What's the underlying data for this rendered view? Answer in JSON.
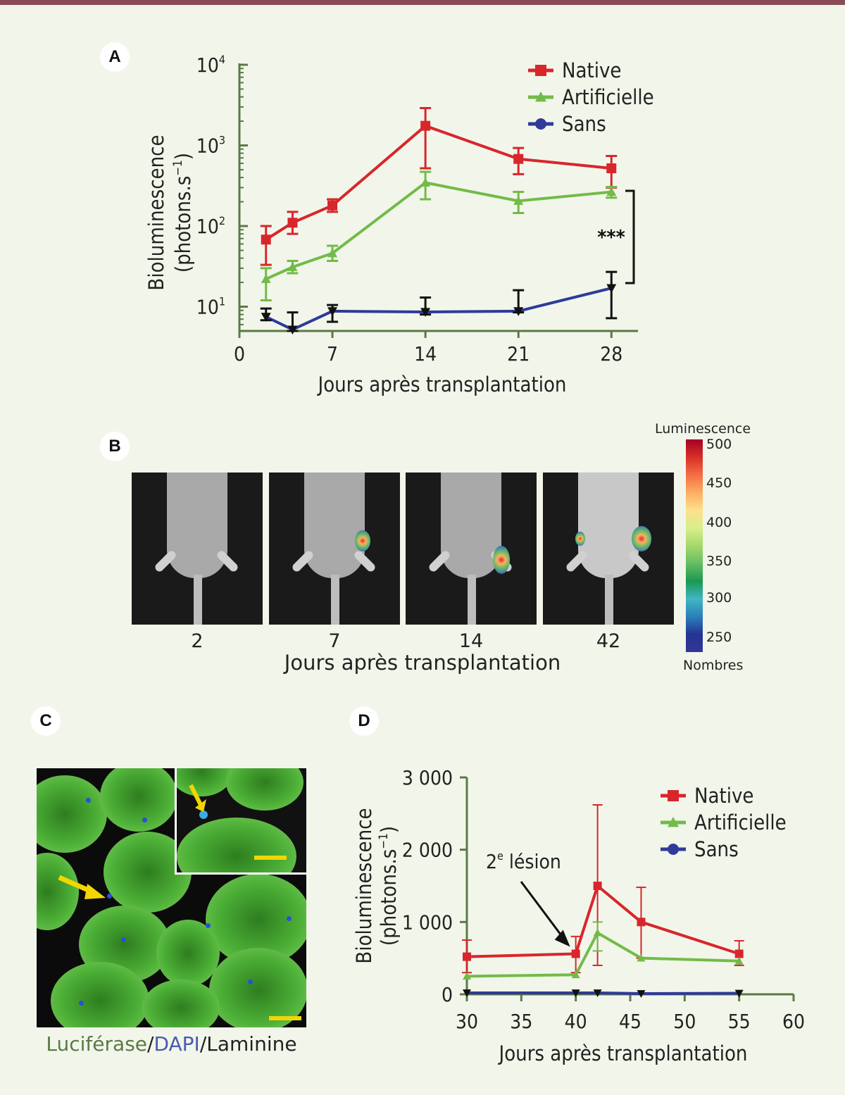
{
  "panels": {
    "a": "A",
    "b": "B",
    "c": "C",
    "d": "D"
  },
  "legend": {
    "native": "Native",
    "artificielle": "Artificielle",
    "sans": "Sans"
  },
  "colors": {
    "native": "#d8262c",
    "artificielle": "#72bb48",
    "sans": "#2f3a9a",
    "axis": "#5a7a45",
    "bar": "#8a4b57"
  },
  "panel_b": {
    "days": [
      "2",
      "7",
      "14",
      "42"
    ],
    "xlabel": "Jours après transplantation",
    "colorbar_title": "Luminescence",
    "colorbar_footer": "Nombres",
    "colorbar_ticks": [
      "500",
      "450",
      "400",
      "350",
      "300",
      "250"
    ]
  },
  "panel_c": {
    "caption_parts": [
      "Luciférase",
      "/",
      "DAPI",
      "/",
      "Laminine"
    ],
    "caption_colors": [
      "#5a7a45",
      "#222222",
      "#4a5ab0",
      "#222222",
      "#222222"
    ]
  },
  "chart_data": [
    {
      "id": "A",
      "type": "line",
      "yscale": "log",
      "xlabel": "Jours après transplantation",
      "ylabel": "Bioluminescence",
      "ylabel_unit_base": "(photons.s",
      "ylabel_unit_exp": "−1",
      "ylabel_unit_close": ")",
      "xlim": [
        0,
        30
      ],
      "ylim": [
        5,
        10000
      ],
      "x_ticks": [
        0,
        7,
        14,
        21,
        28
      ],
      "y_ticks": [
        {
          "base": "10",
          "exp": "1",
          "value": 10
        },
        {
          "base": "10",
          "exp": "2",
          "value": 100
        },
        {
          "base": "10",
          "exp": "3",
          "value": 1000
        },
        {
          "base": "10",
          "exp": "4",
          "value": 10000
        }
      ],
      "annotation": "***",
      "legend_position": "top-right",
      "series": [
        {
          "name": "Native",
          "key": "native",
          "marker": "square",
          "x": [
            2,
            4,
            7,
            14,
            21,
            28
          ],
          "y": [
            68,
            110,
            180,
            1750,
            680,
            520
          ],
          "err_low": [
            33,
            80,
            150,
            520,
            440,
            300
          ],
          "err_high": [
            100,
            150,
            215,
            2900,
            930,
            740
          ]
        },
        {
          "name": "Artificielle",
          "key": "artificielle",
          "marker": "triangle",
          "x": [
            2,
            4,
            7,
            14,
            21,
            28
          ],
          "y": [
            22,
            31,
            46,
            345,
            205,
            265
          ],
          "err_low": [
            12,
            26,
            37,
            215,
            145,
            225
          ],
          "err_high": [
            30,
            37,
            57,
            470,
            265,
            305
          ]
        },
        {
          "name": "Sans",
          "key": "sans",
          "marker": "triangle-down",
          "x": [
            2,
            4,
            7,
            14,
            21,
            28
          ],
          "y": [
            7.5,
            5.2,
            8.8,
            8.6,
            8.8,
            17
          ],
          "err_low": [
            6.8,
            5,
            6.5,
            8,
            8.5,
            7.2
          ],
          "err_high": [
            9.5,
            8.5,
            10.5,
            13,
            16,
            27
          ]
        }
      ]
    },
    {
      "id": "D",
      "type": "line",
      "xlabel": "Jours après transplantation",
      "ylabel": "Bioluminescence",
      "ylabel_unit_base": "(photons.s",
      "ylabel_unit_exp": "−1",
      "ylabel_unit_close": ")",
      "xlim": [
        30,
        60
      ],
      "ylim": [
        0,
        3000
      ],
      "x_ticks": [
        30,
        35,
        40,
        45,
        50,
        55,
        60
      ],
      "y_ticks": [
        {
          "label": "0",
          "value": 0
        },
        {
          "label": "1 000",
          "value": 1000
        },
        {
          "label": "2 000",
          "value": 2000
        },
        {
          "label": "3 000",
          "value": 3000
        }
      ],
      "annotation_base": "2",
      "annotation_sup": "e",
      "annotation_rest": " lésion",
      "annotation_target": {
        "x": 40,
        "y": 580
      },
      "legend_position": "top-right",
      "series": [
        {
          "name": "Native",
          "key": "native",
          "marker": "square",
          "x": [
            30,
            40,
            42,
            46,
            55
          ],
          "y": [
            520,
            560,
            1500,
            1000,
            560
          ],
          "err_low": [
            300,
            300,
            400,
            500,
            400
          ],
          "err_high": [
            750,
            800,
            2620,
            1480,
            740
          ]
        },
        {
          "name": "Artificielle",
          "key": "artificielle",
          "marker": "triangle",
          "x": [
            30,
            40,
            42,
            46,
            55
          ],
          "y": [
            250,
            270,
            850,
            500,
            460
          ],
          "err_low": [
            250,
            270,
            600,
            500,
            460
          ],
          "err_high": [
            250,
            270,
            1000,
            500,
            460
          ]
        },
        {
          "name": "Sans",
          "key": "sans",
          "marker": "triangle-down",
          "x": [
            30,
            40,
            42,
            46,
            55
          ],
          "y": [
            20,
            20,
            20,
            10,
            15
          ],
          "err_low": [
            20,
            20,
            20,
            10,
            15
          ],
          "err_high": [
            20,
            20,
            20,
            10,
            15
          ]
        }
      ]
    }
  ]
}
